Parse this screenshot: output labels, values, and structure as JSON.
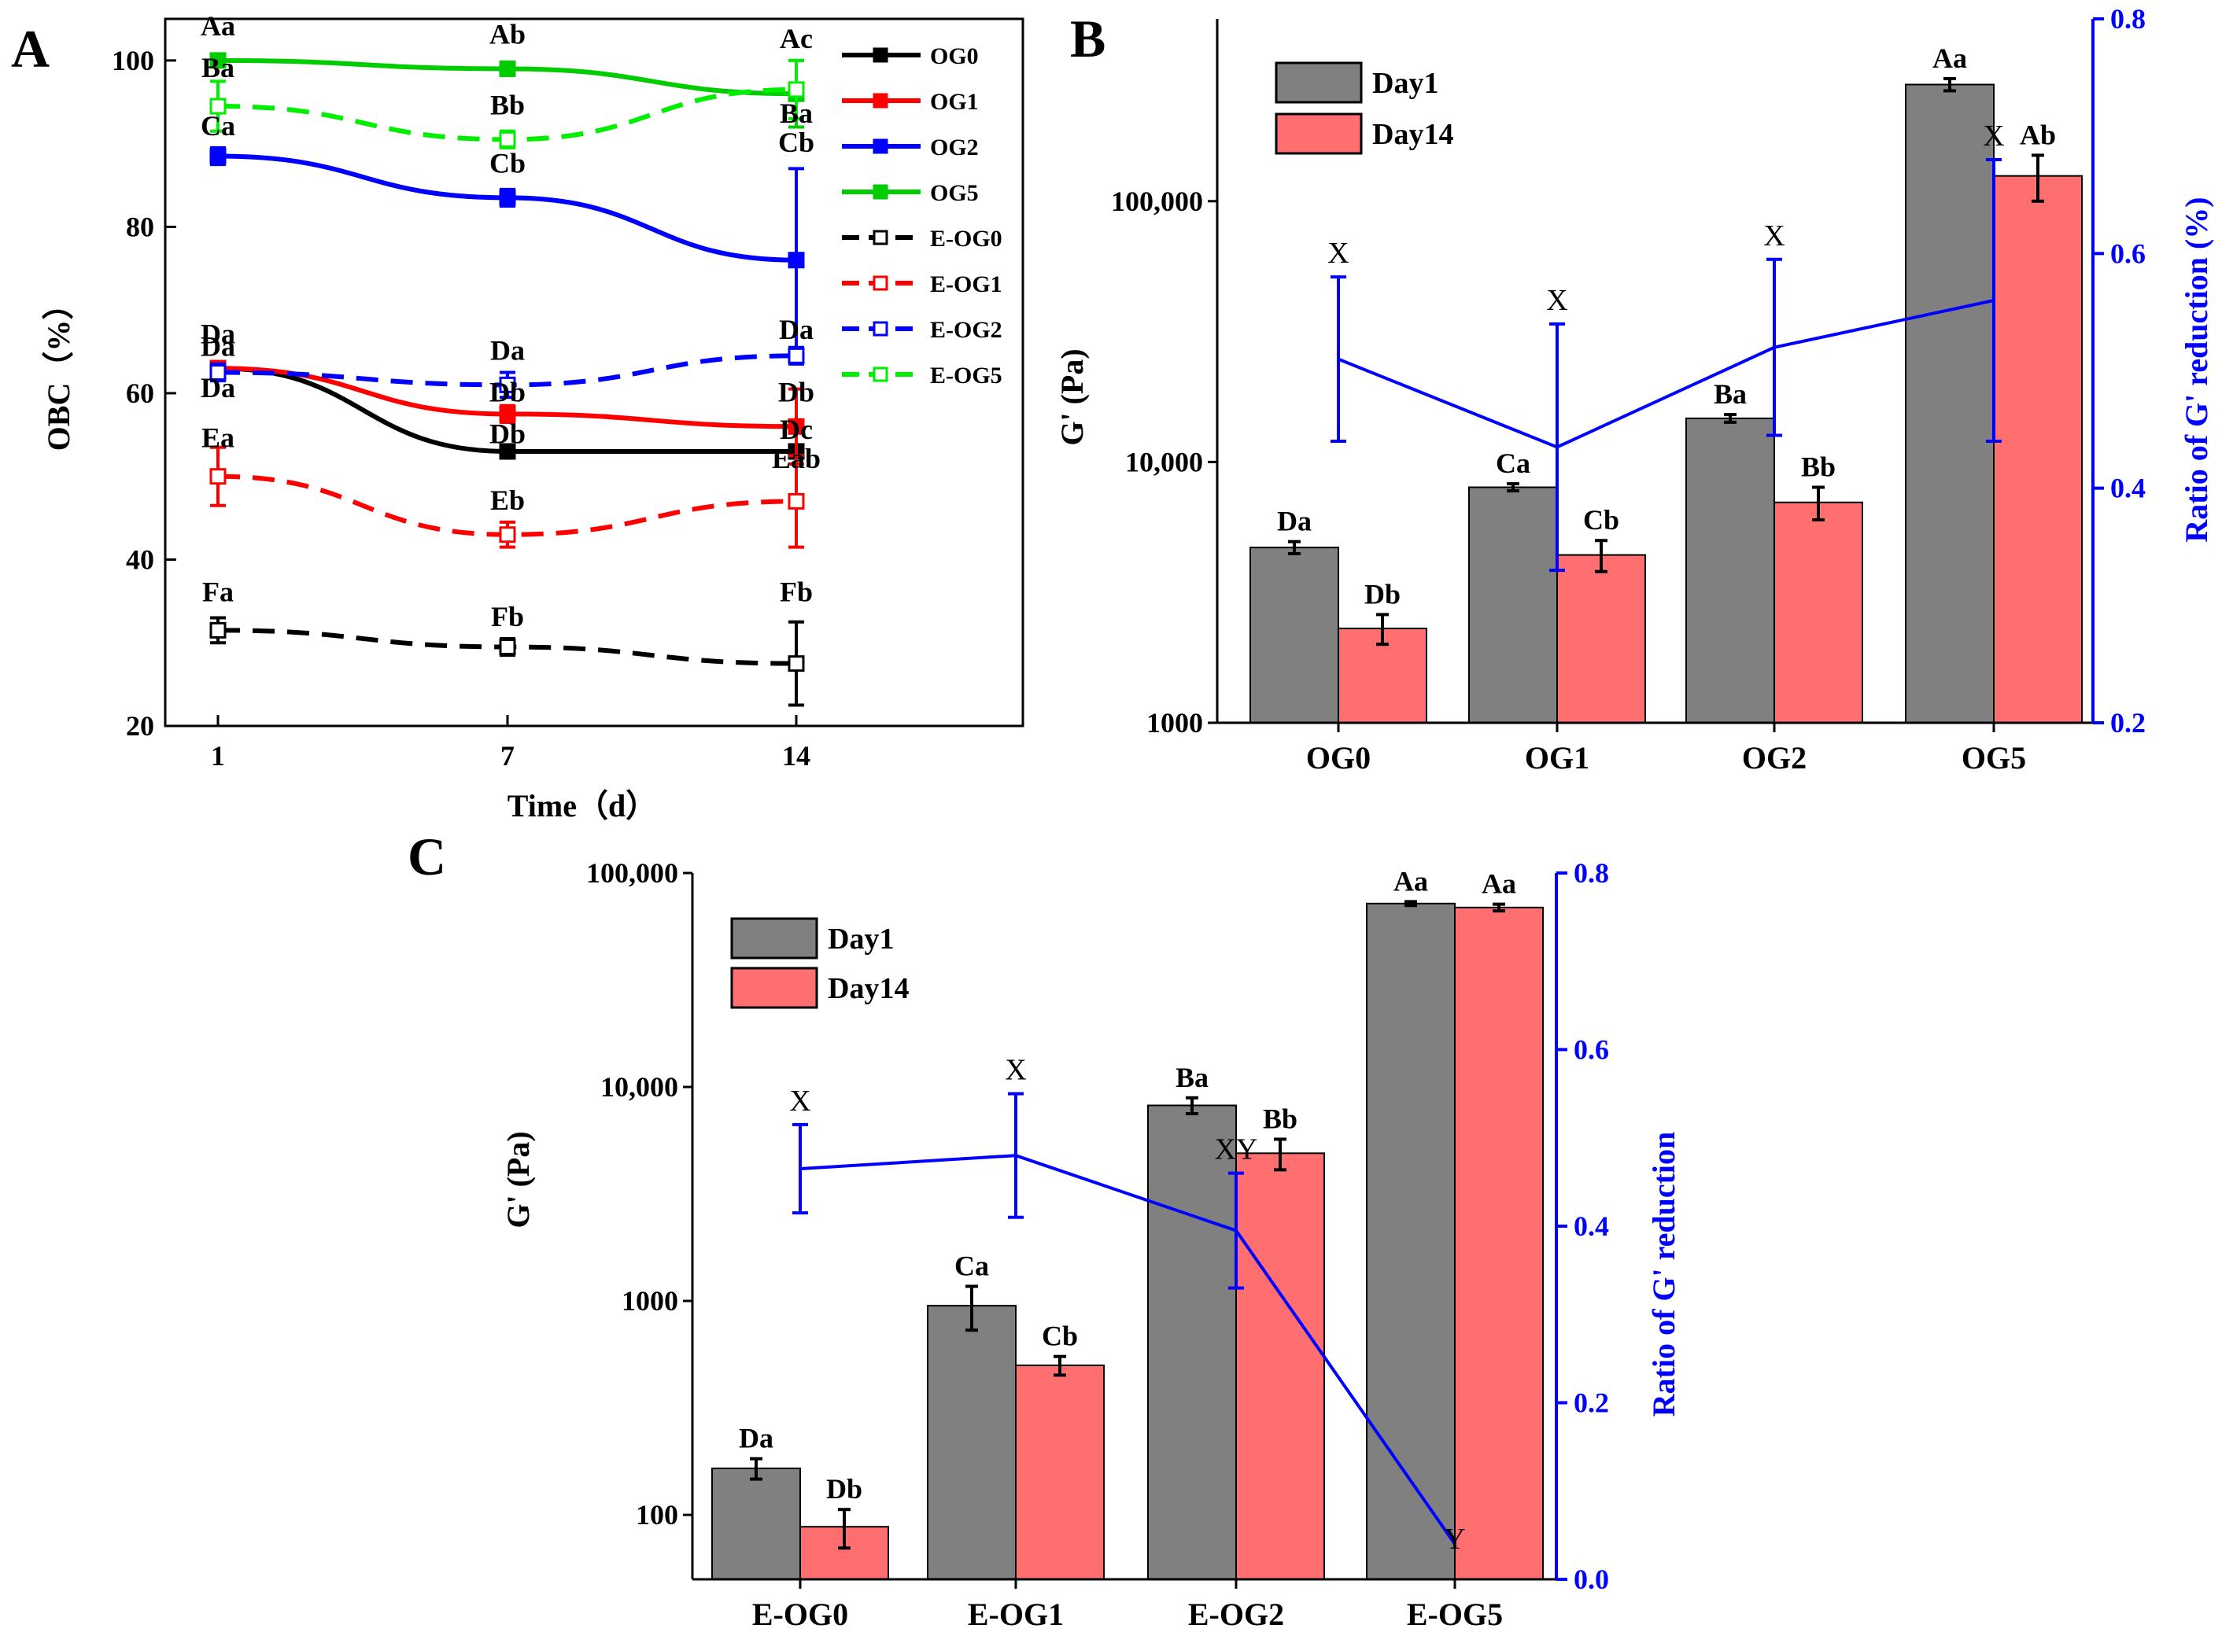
{
  "colors": {
    "black": "#000000",
    "red": "#ff0000",
    "blue": "#0000ff",
    "green": "#00cc00",
    "light_green": "#00ee00",
    "bar_day1": "#808080",
    "bar_day14": "#ff6f6f"
  },
  "chart_data": [
    {
      "id": "A",
      "type": "line",
      "panel_label": "A",
      "xlabel": "Time（d）",
      "ylabel": "OBC（%）",
      "ylim": [
        20,
        105
      ],
      "yticks": [
        20,
        40,
        60,
        80,
        100
      ],
      "x": [
        1,
        7,
        14
      ],
      "xtick_labels": [
        "1",
        "7",
        "14"
      ],
      "legend_position": "top-right",
      "series": [
        {
          "name": "OG0",
          "color": "#000000",
          "dashed": false,
          "filled": true,
          "values": [
            63,
            53,
            53
          ],
          "err": [
            0.5,
            0.8,
            0.8
          ]
        },
        {
          "name": "OG1",
          "color": "#ff0000",
          "dashed": false,
          "filled": true,
          "values": [
            63,
            57.5,
            56
          ],
          "err": [
            0.8,
            1,
            4.5
          ]
        },
        {
          "name": "OG2",
          "color": "#0000ff",
          "dashed": false,
          "filled": true,
          "values": [
            88.5,
            83.5,
            76
          ],
          "err": [
            1,
            1,
            11
          ]
        },
        {
          "name": "OG5",
          "color": "#00cc00",
          "dashed": false,
          "filled": true,
          "values": [
            100,
            99,
            96
          ],
          "err": [
            0.5,
            0.5,
            4
          ]
        },
        {
          "name": "E-OG0",
          "color": "#000000",
          "dashed": true,
          "filled": false,
          "values": [
            31.5,
            29.5,
            27.5
          ],
          "err": [
            1.5,
            1,
            5
          ]
        },
        {
          "name": "E-OG1",
          "color": "#ff0000",
          "dashed": true,
          "filled": false,
          "values": [
            50,
            43,
            47
          ],
          "err": [
            3.5,
            1.5,
            5.5
          ]
        },
        {
          "name": "E-OG2",
          "color": "#0000ff",
          "dashed": true,
          "filled": false,
          "values": [
            62.5,
            61,
            64.5
          ],
          "err": [
            1,
            1.5,
            1
          ]
        },
        {
          "name": "E-OG5",
          "color": "#00ee00",
          "dashed": true,
          "filled": false,
          "values": [
            94.5,
            90.5,
            96.5
          ],
          "err": [
            3,
            1,
            3.5
          ]
        }
      ],
      "annotations": [
        {
          "text": "Aa",
          "x": 1,
          "y": 103
        },
        {
          "text": "Ab",
          "x": 7,
          "y": 102
        },
        {
          "text": "Ac",
          "x": 14,
          "y": 101.5
        },
        {
          "text": "Ba",
          "x": 1,
          "y": 98
        },
        {
          "text": "Bb",
          "x": 7,
          "y": 93.5
        },
        {
          "text": "Ba",
          "x": 14,
          "y": 92.5
        },
        {
          "text": "Ca",
          "x": 1,
          "y": 91
        },
        {
          "text": "Cb",
          "x": 7,
          "y": 86.5
        },
        {
          "text": "Cb",
          "x": 14,
          "y": 89
        },
        {
          "text": "Da",
          "x": 1,
          "y": 66
        },
        {
          "text": "Da",
          "x": 1,
          "y": 64.5
        },
        {
          "text": "Da",
          "x": 1,
          "y": 59.5
        },
        {
          "text": "Da",
          "x": 7,
          "y": 64
        },
        {
          "text": "Db",
          "x": 7,
          "y": 59
        },
        {
          "text": "Db",
          "x": 7,
          "y": 54
        },
        {
          "text": "Da",
          "x": 14,
          "y": 66.5
        },
        {
          "text": "Db",
          "x": 14,
          "y": 59
        },
        {
          "text": "Dc",
          "x": 14,
          "y": 54.5
        },
        {
          "text": "Ea",
          "x": 1,
          "y": 53.5
        },
        {
          "text": "Eb",
          "x": 7,
          "y": 46
        },
        {
          "text": "Eab",
          "x": 14,
          "y": 51
        },
        {
          "text": "Fa",
          "x": 1,
          "y": 35
        },
        {
          "text": "Fb",
          "x": 7,
          "y": 32
        },
        {
          "text": "Fb",
          "x": 14,
          "y": 35
        }
      ]
    },
    {
      "id": "B",
      "type": "bar",
      "panel_label": "B",
      "categories": [
        "OG0",
        "OG1",
        "OG2",
        "OG5"
      ],
      "ylabel": "G' (Pa)",
      "y2label": "Ratio of G' reduction (%)",
      "yscale": "log",
      "ylim": [
        1000,
        500000
      ],
      "yticks": [
        1000,
        10000,
        100000
      ],
      "ytick_labels": [
        "1000",
        "10,000",
        "100,000"
      ],
      "y2lim": [
        0.2,
        0.8
      ],
      "y2ticks": [
        0.2,
        0.4,
        0.6,
        0.8
      ],
      "legend_position": "top-left",
      "series": [
        {
          "name": "Day1",
          "color": "#808080",
          "values": [
            4700,
            8000,
            14700,
            280000
          ],
          "err": [
            250,
            250,
            500,
            15000
          ],
          "labels": [
            "Da",
            "Ca",
            "Ba",
            "Aa"
          ]
        },
        {
          "name": "Day14",
          "color": "#ff6f6f",
          "values": [
            2300,
            4400,
            7000,
            125000
          ],
          "err": [
            300,
            600,
            1000,
            25000
          ],
          "labels": [
            "Db",
            "Cb",
            "Bb",
            "Ab"
          ]
        }
      ],
      "ratio": {
        "values": [
          0.51,
          0.435,
          0.52,
          0.56
        ],
        "err": [
          0.07,
          0.105,
          0.075,
          0.12
        ],
        "labels": [
          "X",
          "X",
          "X",
          "X"
        ],
        "color": "#0000ff"
      }
    },
    {
      "id": "C",
      "type": "bar",
      "panel_label": "C",
      "categories": [
        "E-OG0",
        "E-OG1",
        "E-OG2",
        "E-OG5"
      ],
      "ylabel": "G' (Pa)",
      "y2label": "Ratio of G' reduction",
      "yscale": "log",
      "ylim": [
        50,
        100000
      ],
      "yticks": [
        100,
        1000,
        10000,
        100000
      ],
      "ytick_labels": [
        "100",
        "1000",
        "10,000",
        "100,000"
      ],
      "y2lim": [
        0.0,
        0.8
      ],
      "y2ticks": [
        0.0,
        0.2,
        0.4,
        0.6,
        0.8
      ],
      "legend_position": "top-left",
      "series": [
        {
          "name": "Day1",
          "color": "#808080",
          "values": [
            165,
            950,
            8200,
            72000
          ],
          "err": [
            18,
            220,
            700,
            1500
          ],
          "labels": [
            "Da",
            "Ca",
            "Ba",
            "Aa"
          ]
        },
        {
          "name": "Day14",
          "color": "#ff6f6f",
          "values": [
            88,
            500,
            4900,
            69000
          ],
          "err": [
            18,
            50,
            800,
            2500
          ],
          "labels": [
            "Db",
            "Cb",
            "Bb",
            "Aa"
          ]
        }
      ],
      "ratio": {
        "values": [
          0.465,
          0.48,
          0.395,
          0.04
        ],
        "err": [
          0.05,
          0.07,
          0.065,
          0.0
        ],
        "labels": [
          "X",
          "X",
          "XY",
          "Y"
        ],
        "color": "#0000ff"
      }
    }
  ]
}
